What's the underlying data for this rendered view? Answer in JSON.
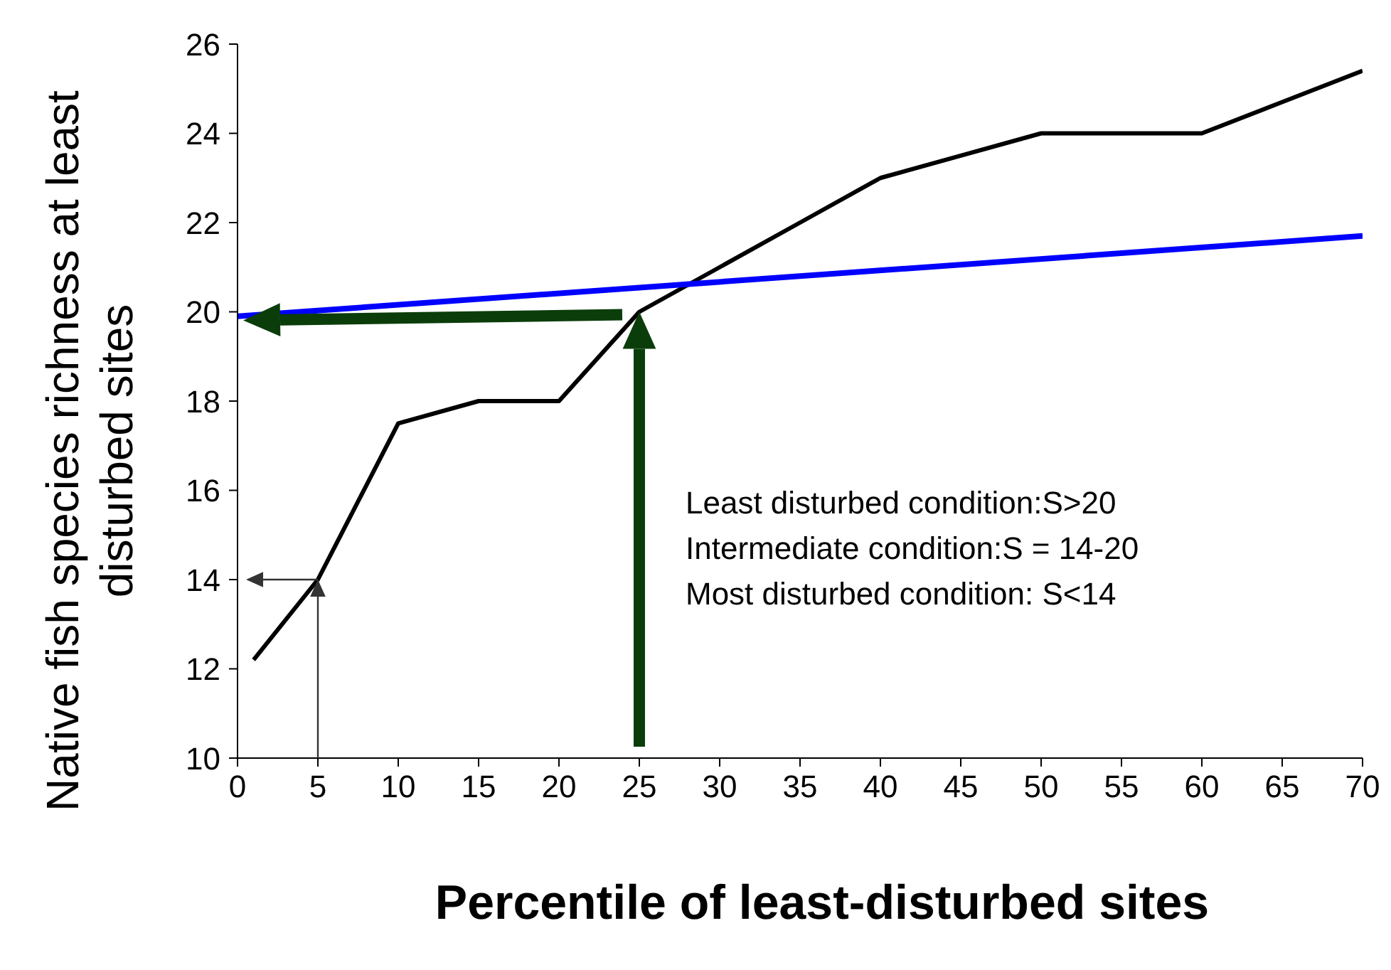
{
  "chart_data": {
    "type": "line",
    "xlabel": "Percentile of least-disturbed sites",
    "ylabel": "Native fish species richness at least disturbed sites",
    "xlim": [
      0,
      70
    ],
    "xticks": [
      0,
      5,
      10,
      15,
      20,
      25,
      30,
      35,
      40,
      45,
      50,
      55,
      60,
      65,
      70
    ],
    "ylim": [
      10,
      26
    ],
    "yticks": [
      10,
      12,
      14,
      16,
      18,
      20,
      22,
      24,
      26
    ],
    "series": [
      {
        "color": "#000000",
        "x": [
          1,
          5,
          10,
          15,
          20,
          25,
          30,
          35,
          40,
          45,
          50,
          55,
          60,
          65,
          70
        ],
        "values": [
          12.2,
          14,
          17.5,
          18,
          18,
          20,
          21,
          22,
          23,
          23.5,
          24,
          24,
          24,
          24.7,
          25.4
        ]
      },
      {
        "color": "#0000ff",
        "x": [
          0,
          70
        ],
        "values": [
          19.9,
          21.7
        ]
      }
    ],
    "annotations": [
      "Least disturbed condition:S>20",
      "Intermediate condition:S = 14-20",
      "Most disturbed condition: S<14"
    ],
    "grid": false,
    "marker": "none",
    "line_style": "solid"
  }
}
